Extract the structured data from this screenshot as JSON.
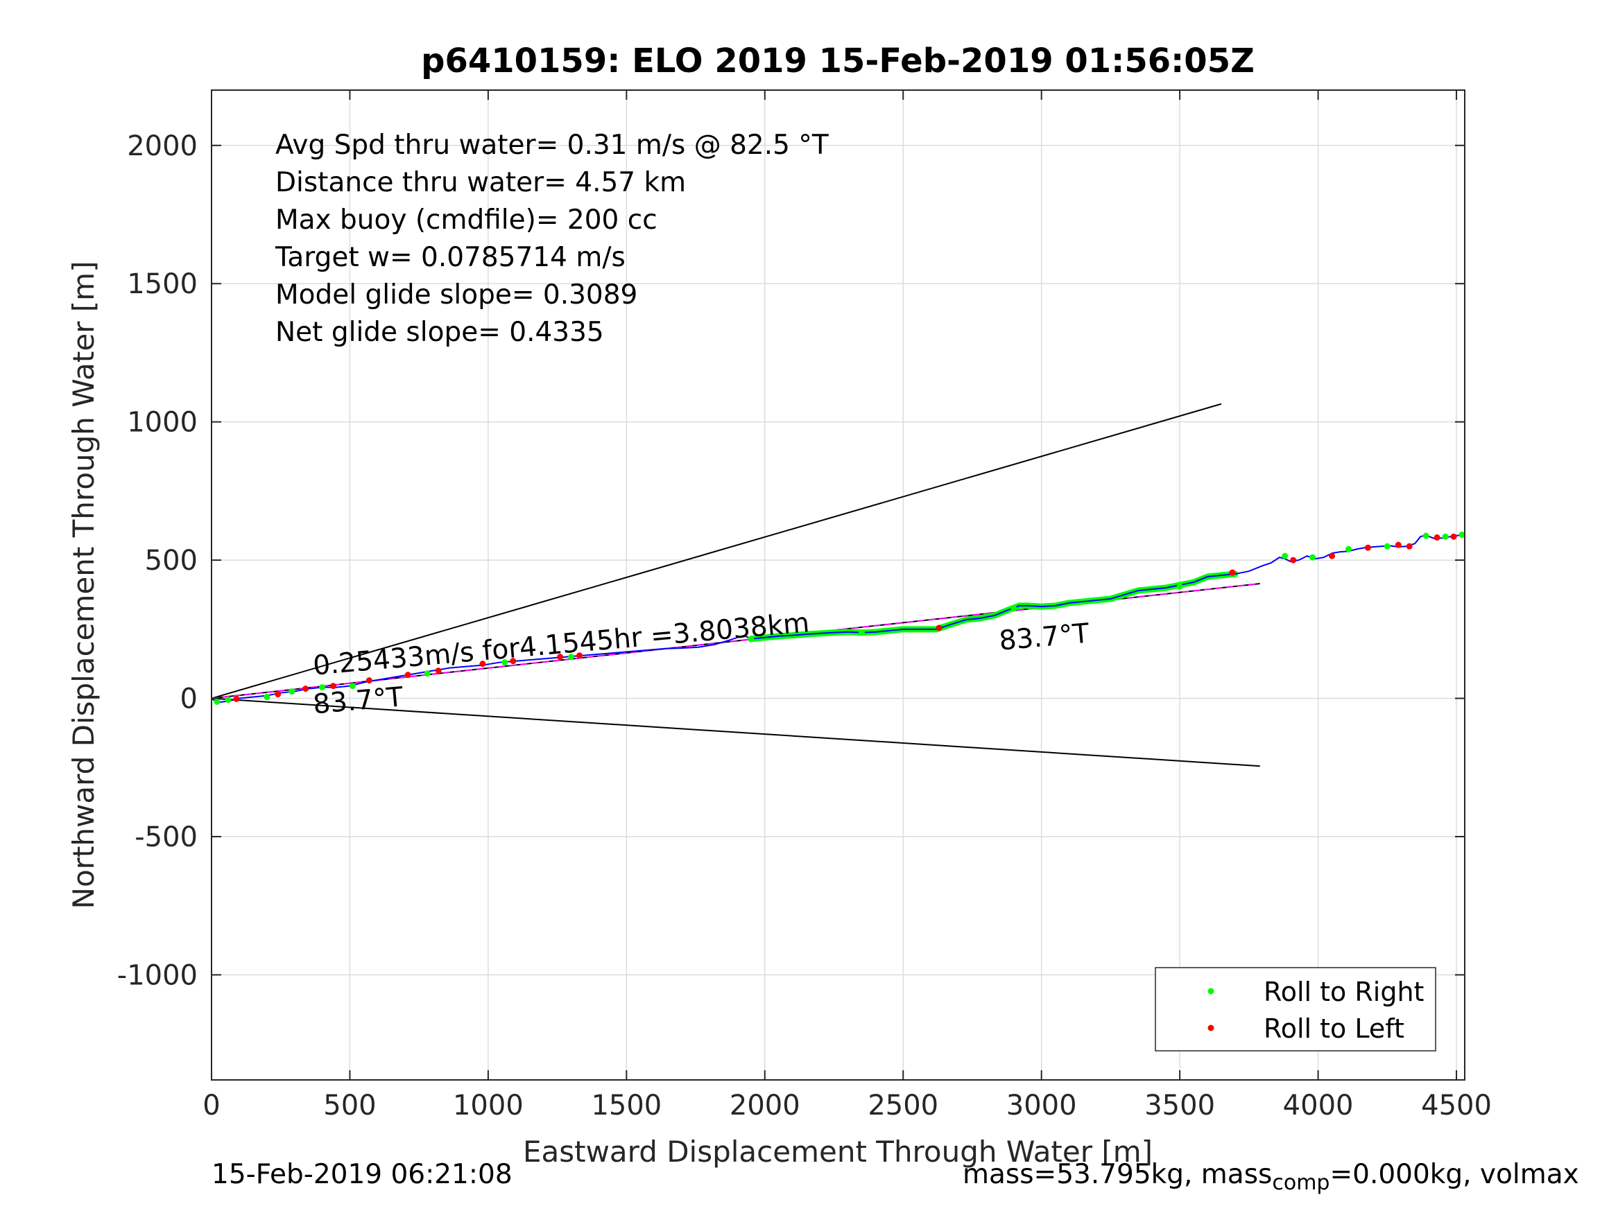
{
  "chart_data": {
    "type": "line",
    "title": "p6410159: ELO 2019 15-Feb-2019 01:56:05Z",
    "xlabel": "Eastward Displacement Through Water [m]",
    "ylabel": "Northward Displacement Through Water [m]",
    "xlim": [
      0,
      4530
    ],
    "ylim": [
      -1380,
      2200
    ],
    "xticks": [
      0,
      500,
      1000,
      1500,
      2000,
      2500,
      3000,
      3500,
      4000,
      4500
    ],
    "yticks": [
      -1000,
      -500,
      0,
      500,
      1000,
      1500,
      2000
    ],
    "ytick_labels": [
      "-1000",
      "-500",
      "0",
      "500",
      "1000",
      "1500",
      "2000"
    ],
    "grid": true,
    "legend_position": "bottom-right",
    "legend": [
      {
        "label": "Roll to Right",
        "color": "#00ff00"
      },
      {
        "label": "Roll to Left",
        "color": "#ff0000"
      }
    ],
    "stats_lines": [
      "Avg Spd thru water=  0.31 m/s @  82.5 °T",
      "Distance thru water=  4.57 km",
      "Max buoy (cmdfile)= 200 cc",
      "Target w= 0.0785714 m/s",
      "Model glide slope= 0.3089",
      "Net glide slope= 0.4335"
    ],
    "annotations": [
      {
        "text": "0.25433m/s for4.1545hr =3.8038km",
        "x": 370,
        "y": 85,
        "rotation_deg": -5
      },
      {
        "text": "83.7°T",
        "x": 370,
        "y": -55,
        "rotation_deg": -5
      },
      {
        "text": "83.7°T",
        "x": 2850,
        "y": 175,
        "rotation_deg": -5
      }
    ],
    "reference_lines": [
      {
        "name": "upper-bound",
        "x": [
          0,
          3650
        ],
        "y": [
          0,
          1065
        ],
        "color": "#000000"
      },
      {
        "name": "mean-heading",
        "x": [
          0,
          3790
        ],
        "y": [
          0,
          415
        ],
        "color": "#000000"
      },
      {
        "name": "lower-bound",
        "x": [
          0,
          3790
        ],
        "y": [
          0,
          -245
        ],
        "color": "#000000"
      },
      {
        "name": "model-fit",
        "x": [
          0,
          3790
        ],
        "y": [
          0,
          415
        ],
        "color": "#ff00ff",
        "dashed": true
      }
    ],
    "series": [
      {
        "style": "track",
        "color": "#0000ff",
        "x": [
          0,
          20,
          60,
          100,
          150,
          200,
          250,
          300,
          350,
          400,
          450,
          500,
          560,
          620,
          680,
          740,
          800,
          860,
          920,
          980,
          1040,
          1100,
          1160,
          1220,
          1280,
          1340,
          1400,
          1460,
          1520,
          1580,
          1640,
          1700,
          1760,
          1820,
          1870,
          1900,
          1930,
          1950,
          2000,
          2050,
          2100,
          2150,
          2200,
          2250,
          2300,
          2350,
          2400,
          2450,
          2500,
          2560,
          2620,
          2680,
          2730,
          2780,
          2830,
          2880,
          2920,
          2950,
          3000,
          3050,
          3100,
          3150,
          3200,
          3250,
          3300,
          3350,
          3400,
          3450,
          3500,
          3550,
          3600,
          3650,
          3700,
          3750,
          3800,
          3830,
          3860,
          3880,
          3900,
          3930,
          3960,
          3990,
          4020,
          4050,
          4080,
          4110,
          4140,
          4170,
          4200,
          4230,
          4260,
          4290,
          4320,
          4350,
          4370,
          4390,
          4420,
          4450,
          4480,
          4510,
          4530
        ],
        "y": [
          0,
          -15,
          -10,
          0,
          5,
          10,
          20,
          25,
          35,
          40,
          40,
          45,
          60,
          70,
          80,
          90,
          100,
          110,
          115,
          120,
          130,
          135,
          140,
          145,
          150,
          155,
          160,
          165,
          170,
          175,
          180,
          182,
          185,
          195,
          210,
          220,
          225,
          215,
          220,
          225,
          228,
          232,
          235,
          238,
          240,
          238,
          240,
          245,
          250,
          250,
          250,
          270,
          285,
          290,
          300,
          320,
          335,
          335,
          332,
          335,
          345,
          350,
          355,
          360,
          375,
          390,
          395,
          400,
          410,
          420,
          440,
          445,
          450,
          460,
          480,
          490,
          510,
          505,
          495,
          500,
          515,
          505,
          510,
          525,
          530,
          532,
          540,
          545,
          548,
          550,
          552,
          548,
          550,
          560,
          585,
          590,
          578,
          580,
          585,
          590,
          590
        ]
      },
      {
        "style": "highlight",
        "color": "#00ff00",
        "x": [
          1950,
          2000,
          2050,
          2100,
          2150,
          2200,
          2250,
          2300,
          2350,
          2400,
          2450,
          2500,
          2560,
          2620,
          2680,
          2730,
          2780,
          2830,
          2880,
          2920,
          2950,
          3000,
          3050,
          3100,
          3150,
          3200,
          3250,
          3300,
          3350,
          3400,
          3450,
          3500,
          3550,
          3600,
          3650,
          3700
        ],
        "y": [
          215,
          220,
          225,
          228,
          232,
          235,
          238,
          240,
          238,
          240,
          245,
          250,
          250,
          250,
          270,
          285,
          290,
          300,
          320,
          335,
          335,
          332,
          335,
          345,
          350,
          355,
          360,
          375,
          390,
          395,
          400,
          410,
          420,
          440,
          445,
          450
        ]
      },
      {
        "style": "markers",
        "name": "Roll to Right",
        "color": "#00ff00",
        "x": [
          20,
          60,
          200,
          290,
          400,
          510,
          780,
          1060,
          1300,
          1950,
          2350,
          2900,
          3500,
          3880,
          3980,
          4110,
          4250,
          4390,
          4460,
          4520
        ],
        "y": [
          -12,
          -5,
          5,
          25,
          40,
          45,
          90,
          130,
          150,
          215,
          238,
          325,
          405,
          515,
          510,
          540,
          550,
          588,
          585,
          592
        ]
      },
      {
        "style": "markers",
        "name": "Roll to Left",
        "color": "#ff0000",
        "x": [
          90,
          240,
          340,
          440,
          570,
          710,
          820,
          980,
          1090,
          1260,
          1330,
          2630,
          3690,
          3910,
          4050,
          4180,
          4290,
          4330,
          4430,
          4490
        ],
        "y": [
          -2,
          15,
          35,
          45,
          65,
          85,
          100,
          125,
          135,
          150,
          155,
          255,
          455,
          500,
          515,
          545,
          555,
          550,
          582,
          585
        ]
      }
    ]
  },
  "footer": {
    "timestamp": "15-Feb-2019 06:21:08",
    "mass_prefix": "mass=53.795kg, mass",
    "mass_sub": "comp",
    "mass_suffix": "=0.000kg, volmax"
  }
}
